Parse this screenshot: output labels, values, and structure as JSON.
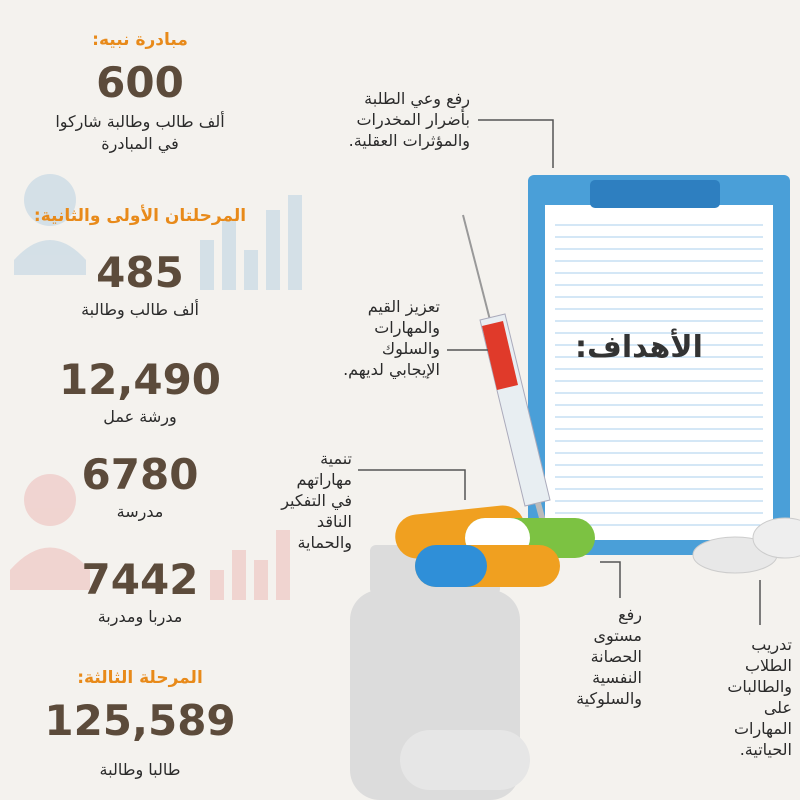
{
  "stats": {
    "initiative": {
      "heading": "مبادرة نبيه:",
      "number": "600",
      "caption": [
        "ألف طالب وطالبة شاركوا",
        "في المبادرة"
      ]
    },
    "phases_1_2": {
      "heading": "المرحلتان الأولى والثانية:",
      "items": [
        {
          "number": "485",
          "caption": "ألف طالب وطالبة"
        },
        {
          "number": "12,490",
          "caption": "ورشة عمل"
        },
        {
          "number": "6780",
          "caption": "مدرسة"
        },
        {
          "number": "7442",
          "caption": "مدربا ومدربة"
        }
      ]
    },
    "phase_3": {
      "heading": "المرحلة الثالثة:",
      "number": "125,589",
      "caption": "طالبا وطالبة"
    }
  },
  "goals": {
    "title": "الأهداف:",
    "items": [
      {
        "lines": [
          "رفع وعي الطلبة",
          "بأضرار المخدرات",
          "والمؤثرات العقلية."
        ]
      },
      {
        "lines": [
          "تعزيز القيم",
          "والمهارات",
          "والسلوك",
          "الإيجابي لديهم."
        ]
      },
      {
        "lines": [
          "تنمية",
          "مهاراتهم",
          "في التفكير",
          "الناقد",
          "والحماية"
        ]
      },
      {
        "lines": [
          "رفع",
          "مستوى",
          "الحصانة",
          "النفسية",
          "والسلوكية"
        ]
      },
      {
        "lines": [
          "تدريب",
          "الطلاب",
          "والطالبات",
          "على",
          "المهارات",
          "الحياتية."
        ]
      }
    ]
  }
}
